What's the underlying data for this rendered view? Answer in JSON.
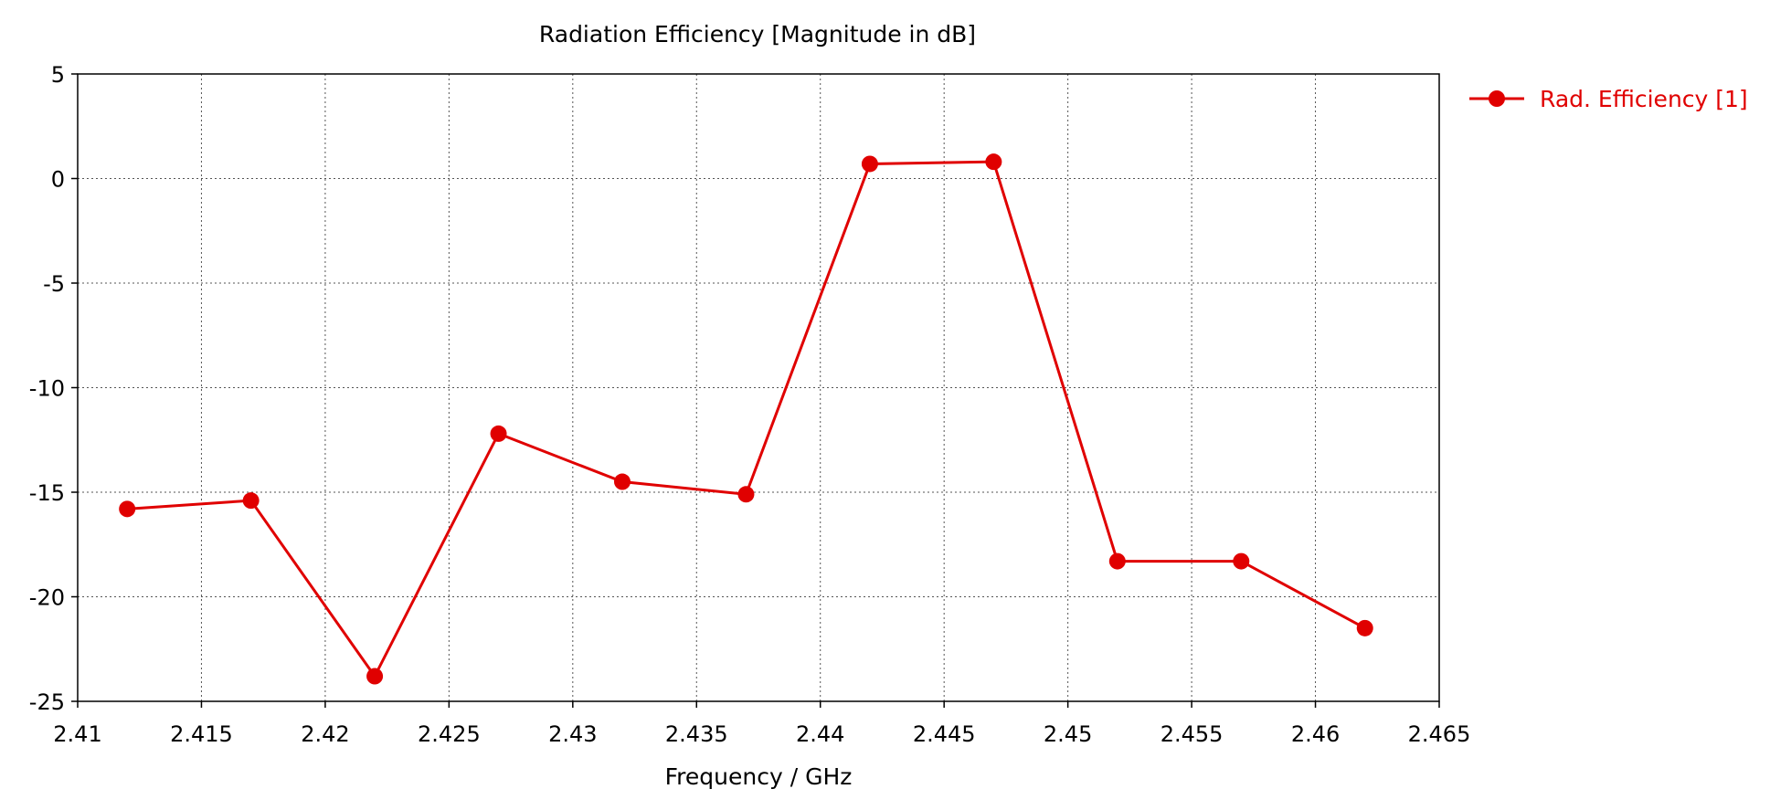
{
  "chart_data": {
    "type": "line",
    "title": "Radiation Efficiency [Magnitude in dB]",
    "xlabel": "Frequency / GHz",
    "ylabel": "",
    "xlim": [
      2.41,
      2.465
    ],
    "ylim": [
      -25,
      5
    ],
    "xticks": [
      "2.41",
      "2.415",
      "2.42",
      "2.425",
      "2.43",
      "2.435",
      "2.44",
      "2.445",
      "2.45",
      "2.455",
      "2.46",
      "2.465"
    ],
    "yticks": [
      "5",
      "0",
      "-5",
      "-10",
      "-15",
      "-20",
      "-25"
    ],
    "grid": true,
    "legend_position": "top-right, outside plot",
    "series": [
      {
        "name": "Rad. Efficiency [1]",
        "color": "#e00000",
        "marker": "circle",
        "x": [
          2.412,
          2.417,
          2.422,
          2.427,
          2.432,
          2.437,
          2.442,
          2.447,
          2.452,
          2.457,
          2.462
        ],
        "y": [
          -15.8,
          -15.4,
          -23.8,
          -12.2,
          -14.5,
          -15.1,
          0.7,
          0.8,
          -18.3,
          -18.3,
          -21.5
        ]
      }
    ]
  }
}
